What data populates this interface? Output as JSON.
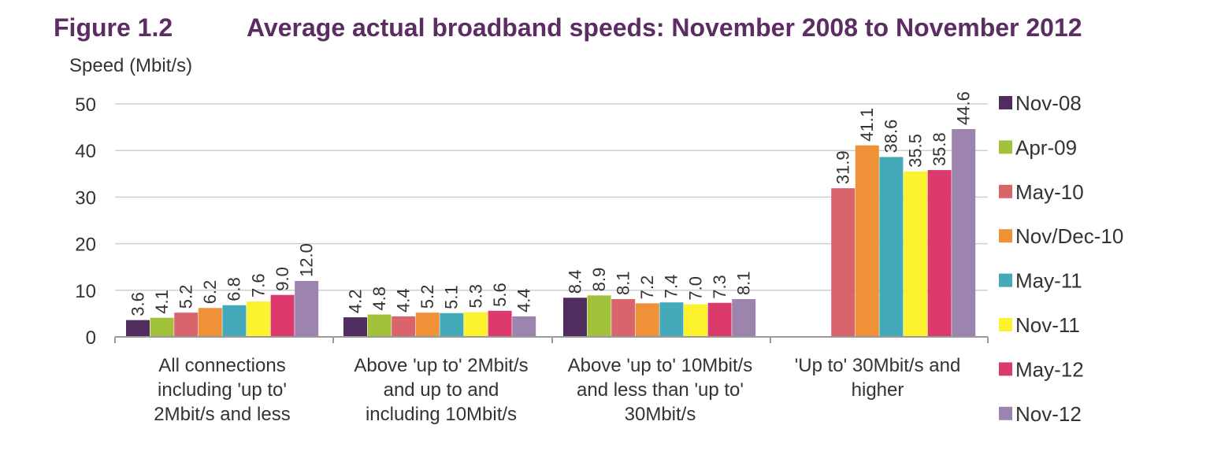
{
  "figure": {
    "number": "Figure 1.2",
    "title": "Average actual broadband speeds: November 2008 to November 2012"
  },
  "colors": {
    "title": "#5c2d63",
    "grid": "#cfcfcf",
    "axis": "#9a9a9a"
  },
  "chart_data": {
    "type": "bar",
    "title": "Average actual broadband speeds: November 2008 to November 2012",
    "ylabel": "Speed (Mbit/s)",
    "xlabel": "",
    "ylim": [
      0,
      50
    ],
    "yticks": [
      0,
      10,
      20,
      30,
      40,
      50
    ],
    "grid": true,
    "legend_position": "right",
    "categories": [
      [
        "All connections",
        "including 'up to'",
        "2Mbit/s and less"
      ],
      [
        "Above 'up to' 2Mbit/s",
        "and up to and",
        "including 10Mbit/s"
      ],
      [
        "Above 'up to' 10Mbit/s",
        "and less than 'up to'",
        "30Mbit/s"
      ],
      [
        "'Up to' 30Mbit/s and",
        "higher"
      ]
    ],
    "series": [
      {
        "name": "Nov-08",
        "color": "#4f2d5e",
        "values": [
          3.6,
          4.2,
          8.4,
          null
        ],
        "labels": [
          "3.6",
          "4.2",
          "8.4",
          ""
        ]
      },
      {
        "name": "Apr-09",
        "color": "#a3c23b",
        "values": [
          4.1,
          4.8,
          8.9,
          null
        ],
        "labels": [
          "4.1",
          "4.8",
          "8.9",
          ""
        ]
      },
      {
        "name": "May-10",
        "color": "#d9646b",
        "values": [
          5.2,
          4.4,
          8.1,
          31.9
        ],
        "labels": [
          "5.2",
          "4.4",
          "8.1",
          "31.9"
        ]
      },
      {
        "name": "Nov/Dec-10",
        "color": "#ee9137",
        "values": [
          6.2,
          5.2,
          7.2,
          41.1
        ],
        "labels": [
          "6.2",
          "5.2",
          "7.2",
          "41.1"
        ]
      },
      {
        "name": "May-11",
        "color": "#44a9b9",
        "values": [
          6.8,
          5.1,
          7.4,
          38.6
        ],
        "labels": [
          "6.8",
          "5.1",
          "7.4",
          "38.6"
        ]
      },
      {
        "name": "Nov-11",
        "color": "#fcf22e",
        "values": [
          7.6,
          5.3,
          7.0,
          35.5
        ],
        "labels": [
          "7.6",
          "5.3",
          "7.0",
          "35.5"
        ]
      },
      {
        "name": "May-12",
        "color": "#dc3a6c",
        "values": [
          9.0,
          5.6,
          7.3,
          35.8
        ],
        "labels": [
          "9.0",
          "5.6",
          "7.3",
          "35.8"
        ]
      },
      {
        "name": "Nov-12",
        "color": "#9d84ae",
        "values": [
          12.0,
          4.4,
          8.1,
          44.6
        ],
        "labels": [
          "12.0",
          "4.4",
          "8.1",
          "44.6"
        ]
      }
    ]
  }
}
